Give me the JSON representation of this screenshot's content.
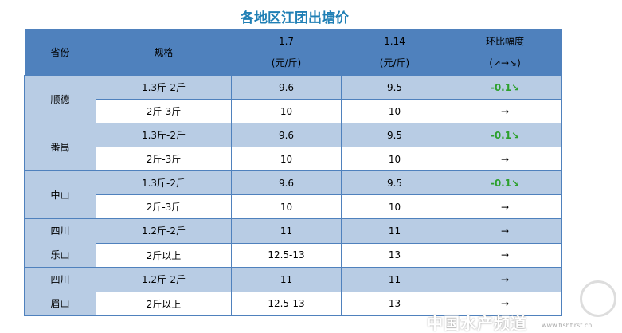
{
  "title": "各地区江团出塘价",
  "headers": {
    "province": "省份",
    "spec": "规格",
    "d1": "1.7",
    "d1_unit": "(元/斤)",
    "d2": "1.14",
    "d2_unit": "(元/斤)",
    "change": "环比幅度",
    "change_legend": "(↗→↘)"
  },
  "groups": [
    {
      "province": [
        "顺德"
      ],
      "rows": [
        {
          "spec": "1.3斤-2斤",
          "p1": "9.6",
          "p2": "9.5",
          "change": "-0.1↘",
          "trend": "down"
        },
        {
          "spec": "2斤-3斤",
          "p1": "10",
          "p2": "10",
          "change": "→",
          "trend": "flat"
        }
      ]
    },
    {
      "province": [
        "番禺"
      ],
      "rows": [
        {
          "spec": "1.3斤-2斤",
          "p1": "9.6",
          "p2": "9.5",
          "change": "-0.1↘",
          "trend": "down"
        },
        {
          "spec": "2斤-3斤",
          "p1": "10",
          "p2": "10",
          "change": "→",
          "trend": "flat"
        }
      ]
    },
    {
      "province": [
        "中山"
      ],
      "rows": [
        {
          "spec": "1.3斤-2斤",
          "p1": "9.6",
          "p2": "9.5",
          "change": "-0.1↘",
          "trend": "down"
        },
        {
          "spec": "2斤-3斤",
          "p1": "10",
          "p2": "10",
          "change": "→",
          "trend": "flat"
        }
      ]
    },
    {
      "province": [
        "四川",
        "乐山"
      ],
      "rows": [
        {
          "spec": "1.2斤-2斤",
          "p1": "11",
          "p2": "11",
          "change": "→",
          "trend": "flat"
        },
        {
          "spec": "2斤以上",
          "p1": "12.5-13",
          "p2": "13",
          "change": "→",
          "trend": "flat"
        }
      ]
    },
    {
      "province": [
        "四川",
        "眉山"
      ],
      "rows": [
        {
          "spec": "1.2斤-2斤",
          "p1": "11",
          "p2": "11",
          "change": "→",
          "trend": "flat"
        },
        {
          "spec": "2斤以上",
          "p1": "12.5-13",
          "p2": "13",
          "change": "→",
          "trend": "flat"
        }
      ]
    }
  ],
  "watermark": {
    "text": "中国水产频道",
    "url": "www.fishfirst.cn"
  },
  "colors": {
    "header": "#4f81bd",
    "band": "#b8cce4",
    "down": "#2ca02c",
    "title": "#1f7fb5"
  }
}
